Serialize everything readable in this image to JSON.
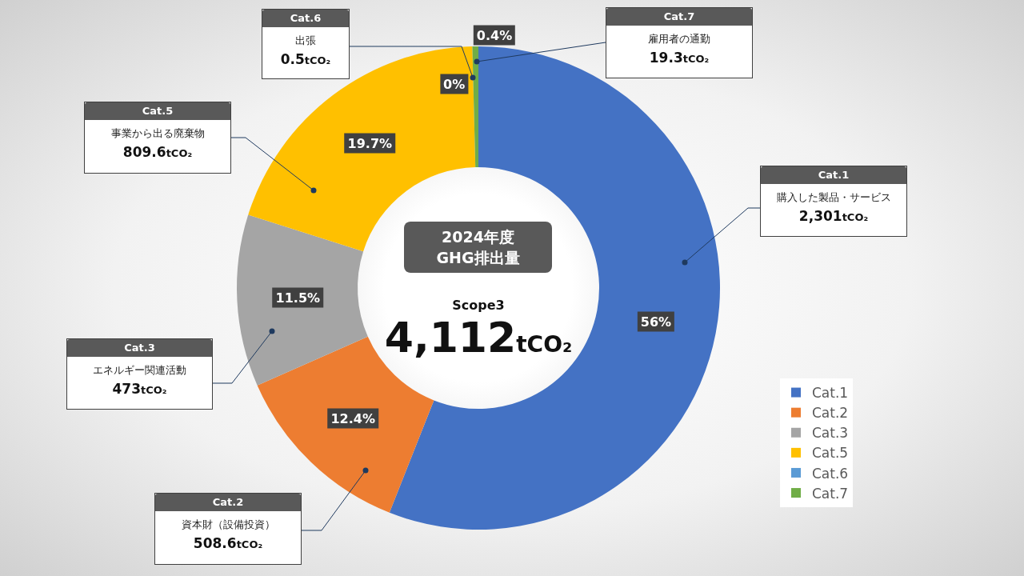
{
  "chart_data": {
    "type": "donut",
    "title": "2024年度\nGHG排出量",
    "subtitle": "Scope3",
    "categories": [
      "Cat.1",
      "Cat.2",
      "Cat.3",
      "Cat.5",
      "Cat.6",
      "Cat.7"
    ],
    "values": [
      56,
      12.4,
      11.5,
      19.7,
      0,
      0.4
    ],
    "colors": [
      "#4472c4",
      "#ed7d31",
      "#a5a5a5",
      "#ffc000",
      "#5b9bd5",
      "#70ad47"
    ],
    "value_labels": [
      "56%",
      "12.4%",
      "11.5%",
      "19.7%",
      "0%",
      "0.4%"
    ],
    "annotations": [
      "購入した製品・サービス",
      "資本財（設備投資）",
      "エネルギー関連活動",
      "事業から出る廃棄物",
      "出張",
      "雇用者の通勤",
      "2,301tCO₂",
      "508.6tCO₂",
      "473tCO₂",
      "809.6tCO₂",
      "0.5tCO₂",
      "19.3tCO₂",
      "4,112tCO₂"
    ],
    "legend": "bottom right"
  }
}
